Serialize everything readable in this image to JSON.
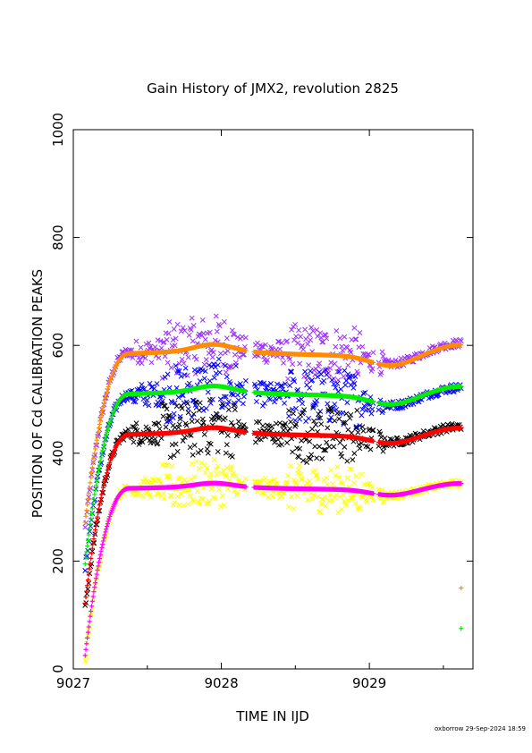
{
  "chart_data": {
    "type": "scatter",
    "title": "Gain History of JMX2, revolution 2825",
    "xlabel": "TIME IN IJD",
    "ylabel": "POSITION OF Cd CALIBRATION PEAKS",
    "xlim": [
      9027,
      9029.7
    ],
    "ylim": [
      0,
      1000
    ],
    "xticks": [
      9027,
      9028,
      9029
    ],
    "yticks": [
      0,
      200,
      400,
      600,
      800,
      1000
    ],
    "grid": false,
    "footer": "oxborrow 29-Sep-2024 18:59",
    "colors": {
      "purple": "#9b30ff",
      "orange": "#ff8c00",
      "blue": "#0000ff",
      "green": "#00ee00",
      "black": "#000000",
      "red": "#ff0000",
      "yellow": "#ffff00",
      "magenta": "#ff00ff"
    },
    "series": [
      {
        "color": "purple",
        "marker": "x",
        "level": 588,
        "start": 260,
        "scatter": 22
      },
      {
        "color": "orange",
        "marker": "+",
        "level": 585,
        "start": 272,
        "scatter": 0
      },
      {
        "color": "blue",
        "marker": "x",
        "level": 508,
        "start": 185,
        "scatter": 22
      },
      {
        "color": "green",
        "marker": "+",
        "level": 510,
        "start": 195,
        "scatter": 0
      },
      {
        "color": "black",
        "marker": "x",
        "level": 437,
        "start": 110,
        "scatter": 22
      },
      {
        "color": "red",
        "marker": "+",
        "level": 435,
        "start": 122,
        "scatter": 0
      },
      {
        "color": "yellow",
        "marker": "x",
        "level": 335,
        "start": 15,
        "scatter": 18
      },
      {
        "color": "magenta",
        "marker": "+",
        "level": 335,
        "start": 25,
        "scatter": 0
      }
    ],
    "offscale_points": [
      {
        "color": "orange",
        "x": 9029.62,
        "y": 150
      },
      {
        "color": "green",
        "x": 9029.62,
        "y": 75
      }
    ]
  }
}
